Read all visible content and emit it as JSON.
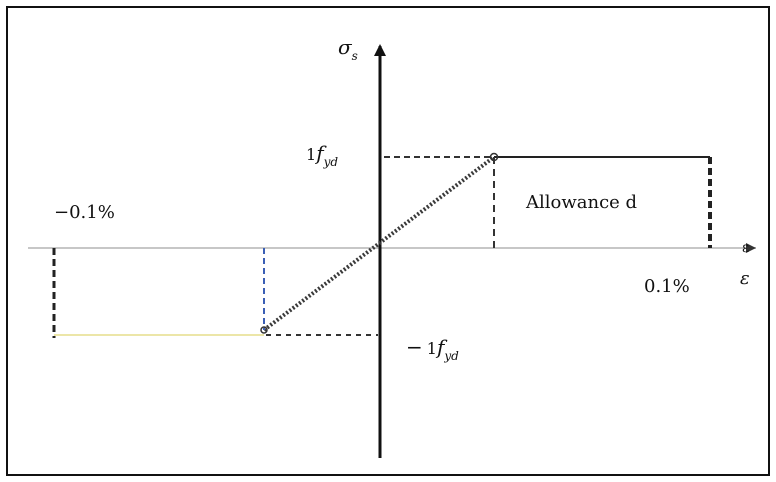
{
  "diagram": {
    "type": "stress-strain diagram",
    "axes": {
      "y_label_main": "σ",
      "y_label_sub": "s",
      "x_label": "ε",
      "x_label_arrow": "ε"
    },
    "labels": {
      "pos_stress_main": "f",
      "pos_stress_coef": "1",
      "pos_stress_sub": "yd",
      "neg_stress_prefix": "−",
      "neg_stress_main": "f",
      "neg_stress_coef": "1",
      "neg_stress_sub": "yd",
      "neg_strain": "−0.1%",
      "pos_strain": "0.1%",
      "allowance_text": "Allowance d"
    },
    "colors": {
      "axis": "#111111",
      "curve": "#3a3a3a",
      "dashed_blue": "#3b5fb5",
      "dashed_dark": "#333333",
      "horizontal_gray": "#c7c7c7",
      "horizontal_yellow": "#ece6a8",
      "horizontal_dark": "#222222"
    }
  }
}
